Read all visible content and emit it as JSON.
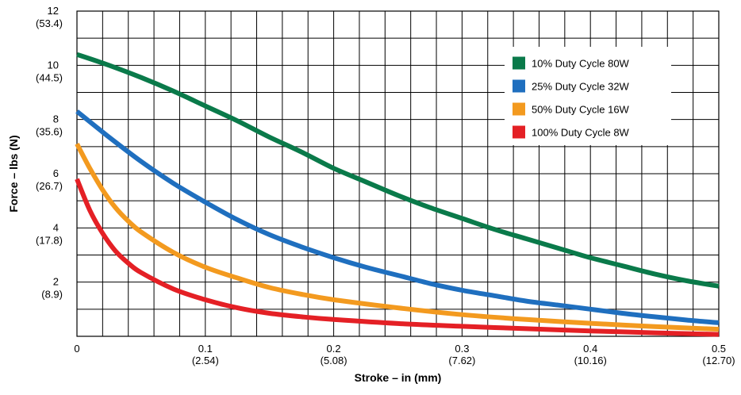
{
  "chart_data": {
    "type": "line",
    "xlabel": "Stroke – in (mm)",
    "ylabel": "Force – lbs (N)",
    "xlim": [
      0,
      0.5
    ],
    "ylim": [
      0,
      12
    ],
    "grid": true,
    "x_major_ticks": [
      {
        "value": 0,
        "label": "0",
        "sublabel": ""
      },
      {
        "value": 0.1,
        "label": "0.1",
        "sublabel": "(2.54)"
      },
      {
        "value": 0.2,
        "label": "0.2",
        "sublabel": "(5.08)"
      },
      {
        "value": 0.3,
        "label": "0.3",
        "sublabel": "(7.62)"
      },
      {
        "value": 0.4,
        "label": "0.4",
        "sublabel": "(10.16)"
      },
      {
        "value": 0.5,
        "label": "0.5",
        "sublabel": "(12.70)"
      }
    ],
    "y_major_ticks": [
      {
        "value": 2,
        "label": "2",
        "sublabel": "(8.9)"
      },
      {
        "value": 4,
        "label": "4",
        "sublabel": "(17.8)"
      },
      {
        "value": 6,
        "label": "6",
        "sublabel": "(26.7)"
      },
      {
        "value": 8,
        "label": "8",
        "sublabel": "(35.6)"
      },
      {
        "value": 10,
        "label": "10",
        "sublabel": "(44.5)"
      },
      {
        "value": 12,
        "label": "12",
        "sublabel": "(53.4)"
      }
    ],
    "x_grid_step": 0.02,
    "y_grid_step": 1,
    "legend_position": "top-right",
    "series": [
      {
        "name": "10% Duty Cycle 80W",
        "color": "#0a7a4a",
        "x": [
          0,
          0.025,
          0.05,
          0.075,
          0.1,
          0.125,
          0.15,
          0.175,
          0.2,
          0.225,
          0.25,
          0.275,
          0.3,
          0.325,
          0.35,
          0.375,
          0.4,
          0.425,
          0.45,
          0.475,
          0.5
        ],
        "y": [
          10.4,
          10.0,
          9.55,
          9.05,
          8.5,
          7.95,
          7.35,
          6.8,
          6.2,
          5.7,
          5.2,
          4.75,
          4.35,
          3.95,
          3.6,
          3.25,
          2.9,
          2.6,
          2.3,
          2.05,
          1.85
        ]
      },
      {
        "name": "25% Duty Cycle 32W",
        "color": "#1f6fbf",
        "x": [
          0,
          0.025,
          0.05,
          0.075,
          0.1,
          0.125,
          0.15,
          0.175,
          0.2,
          0.225,
          0.25,
          0.275,
          0.3,
          0.325,
          0.35,
          0.375,
          0.4,
          0.425,
          0.45,
          0.475,
          0.5
        ],
        "y": [
          8.3,
          7.35,
          6.45,
          5.65,
          4.95,
          4.3,
          3.75,
          3.3,
          2.9,
          2.55,
          2.25,
          1.95,
          1.7,
          1.5,
          1.3,
          1.15,
          1.0,
          0.85,
          0.72,
          0.6,
          0.5
        ]
      },
      {
        "name": "50% Duty Cycle 16W",
        "color": "#f39a1f",
        "x": [
          0,
          0.01,
          0.02,
          0.03,
          0.04,
          0.05,
          0.075,
          0.1,
          0.125,
          0.15,
          0.175,
          0.2,
          0.25,
          0.3,
          0.35,
          0.4,
          0.45,
          0.5
        ],
        "y": [
          7.1,
          6.2,
          5.4,
          4.75,
          4.25,
          3.85,
          3.1,
          2.55,
          2.15,
          1.8,
          1.55,
          1.35,
          1.05,
          0.8,
          0.62,
          0.48,
          0.36,
          0.26
        ]
      },
      {
        "name": "100% Duty Cycle 8W",
        "color": "#e42025",
        "x": [
          0,
          0.01,
          0.02,
          0.03,
          0.04,
          0.05,
          0.075,
          0.1,
          0.125,
          0.15,
          0.175,
          0.2,
          0.25,
          0.3,
          0.35,
          0.4,
          0.45,
          0.5
        ],
        "y": [
          5.8,
          4.65,
          3.8,
          3.15,
          2.7,
          2.35,
          1.75,
          1.35,
          1.05,
          0.85,
          0.72,
          0.62,
          0.47,
          0.37,
          0.28,
          0.2,
          0.13,
          0.07
        ]
      }
    ]
  }
}
